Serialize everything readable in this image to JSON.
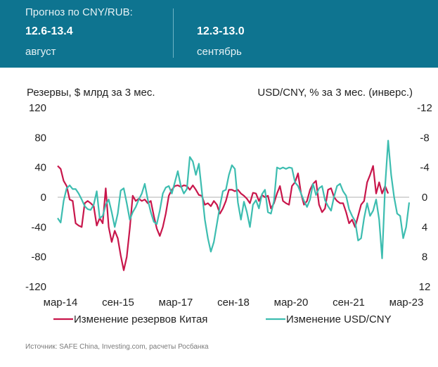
{
  "header": {
    "title": "Прогноз по CNY/RUB:",
    "forecasts": [
      {
        "value": "12.6-13.4",
        "month": "август"
      },
      {
        "value": "12.3-13.0",
        "month": "сентябрь"
      }
    ]
  },
  "colors": {
    "header_bg": "#0e7490",
    "reserves": "#c8164b",
    "usdcny": "#3dbdb0"
  },
  "chart_data": {
    "type": "line",
    "ylabel_left": "Резервы, $ млрд за 3 мес.",
    "ylabel_right": "USD/CNY, % за 3 мес. (инверс.)",
    "ylim_left": [
      -120,
      120
    ],
    "ylim_right": [
      12,
      -12
    ],
    "yticks_left": [
      "120",
      "80",
      "40",
      "0",
      "-40",
      "-80",
      "-120"
    ],
    "yticks_right": [
      "-12",
      "-8",
      "-4",
      "0",
      "4",
      "8",
      "12"
    ],
    "x_tick_labels": [
      "мар-14",
      "сен-15",
      "мар-17",
      "сен-18",
      "мар-20",
      "сен-21",
      "мар-23"
    ],
    "x_start": "2014-03",
    "grid": false,
    "legend_position": "bottom",
    "series": [
      {
        "name": "Изменение резервов Китая",
        "axis": "left",
        "values": [
          42,
          38,
          22,
          15,
          -3,
          -5,
          -35,
          -38,
          -40,
          -8,
          -5,
          -8,
          -12,
          -38,
          -28,
          -35,
          12,
          -40,
          -60,
          -45,
          -55,
          -78,
          -98,
          -80,
          -42,
          2,
          -5,
          -2,
          -5,
          -3,
          -8,
          -5,
          -25,
          -42,
          -52,
          -40,
          -22,
          2,
          10,
          15,
          16,
          14,
          16,
          15,
          10,
          16,
          10,
          3,
          2,
          -10,
          -8,
          -12,
          -5,
          -10,
          -22,
          -15,
          -5,
          10,
          10,
          8,
          10,
          5,
          2,
          -2,
          -8,
          6,
          5,
          -5,
          3,
          0,
          2,
          -15,
          -8,
          5,
          15,
          -5,
          -8,
          -10,
          15,
          20,
          32,
          5,
          -10,
          -5,
          10,
          18,
          22,
          -10,
          -20,
          -15,
          10,
          12,
          0,
          -5,
          -8,
          -8,
          -20,
          -35,
          -30,
          -40,
          -25,
          -10,
          -5,
          20,
          30,
          42,
          5,
          20,
          5,
          15,
          5
        ]
      },
      {
        "name": "Изменение USD/CNY",
        "axis": "right",
        "values": [
          2.8,
          3.4,
          0.5,
          -1.2,
          -1.6,
          -1.1,
          -1.1,
          -0.5,
          0.3,
          1.2,
          1.6,
          1.7,
          1.0,
          -0.8,
          2.8,
          2.5,
          1.0,
          0.3,
          2.0,
          4.0,
          2.2,
          -0.9,
          -1.2,
          0.8,
          3.0,
          2.0,
          1.3,
          0.3,
          -0.5,
          -1.8,
          0.3,
          2.0,
          3.3,
          3.6,
          1.8,
          -0.5,
          -1.3,
          -1.5,
          -0.5,
          -2.0,
          -3.5,
          -1.5,
          -0.5,
          -1.1,
          -5.4,
          -4.8,
          -3.0,
          -4.5,
          -0.8,
          3.0,
          5.5,
          7.3,
          6.0,
          3.6,
          1.2,
          -0.8,
          -1.0,
          -3.0,
          -4.3,
          -3.8,
          0.7,
          3.0,
          0.6,
          2.0,
          4.0,
          1.0,
          0.4,
          1.5,
          -0.4,
          -1.0,
          2.0,
          2.2,
          0.5,
          -4.0,
          -3.8,
          -4.0,
          -3.8,
          -4.0,
          -3.9,
          -2.0,
          -1.5,
          -0.5,
          0.5,
          1.3,
          0.3,
          -1.8,
          -0.3,
          -1.2,
          -1.5,
          0.4,
          1.2,
          1.8,
          -0.1,
          -1.5,
          -1.8,
          -0.8,
          -0.2,
          1.6,
          2.5,
          3.2,
          5.8,
          5.5,
          2.8,
          0.8,
          2.5,
          1.8,
          0.3,
          3.0,
          8.2,
          -1.5,
          -7.6,
          -3.0,
          0,
          2.2,
          2.5,
          5.5,
          4.0,
          0.7
        ]
      }
    ]
  },
  "source": "Источник: SAFE China, Investing.com, расчеты Росбанка"
}
